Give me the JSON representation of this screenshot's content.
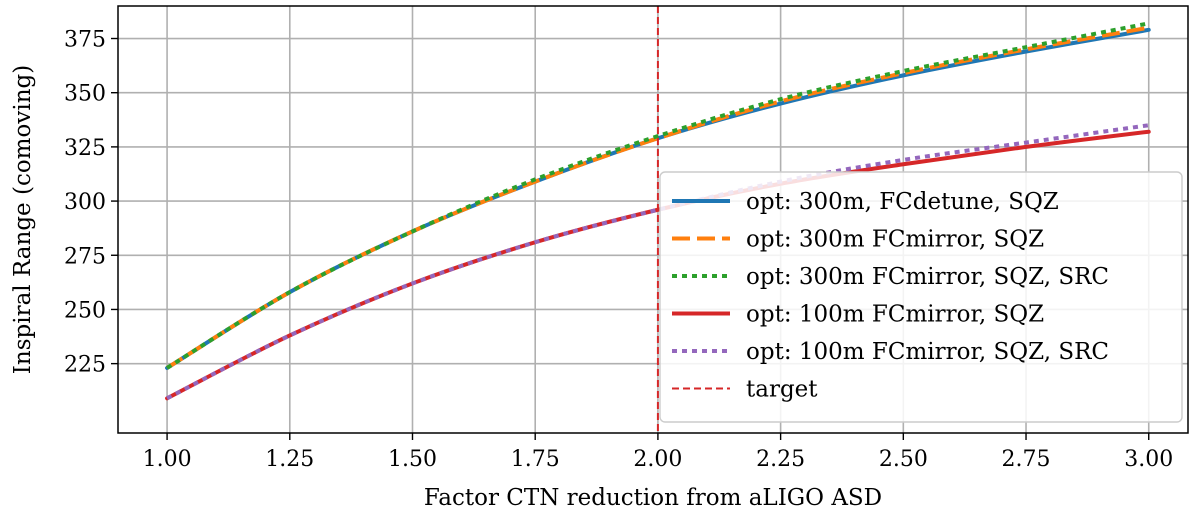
{
  "chart_data": {
    "type": "line",
    "xlabel": "Factor CTN reduction from aLIGO ASD",
    "ylabel": "Inspiral Range (comoving)",
    "xlim": [
      0.9,
      3.08
    ],
    "ylim": [
      193,
      390
    ],
    "xticks": [
      1.0,
      1.25,
      1.5,
      1.75,
      2.0,
      2.25,
      2.5,
      2.75,
      3.0
    ],
    "xtick_labels": [
      "1.00",
      "1.25",
      "1.50",
      "1.75",
      "2.00",
      "2.25",
      "2.50",
      "2.75",
      "3.00"
    ],
    "yticks": [
      225,
      250,
      275,
      300,
      325,
      350,
      375
    ],
    "ytick_labels": [
      "225",
      "250",
      "275",
      "300",
      "325",
      "350",
      "375"
    ],
    "grid": true,
    "legend_position": "right",
    "x": [
      1.0,
      1.25,
      1.5,
      1.75,
      2.0,
      2.25,
      2.5,
      2.75,
      3.0
    ],
    "series": [
      {
        "name": "opt: 300m, FCdetune, SQZ",
        "color": "#1f77b4",
        "style": "solid",
        "values": [
          223,
          258,
          286,
          309,
          329,
          345,
          358,
          369,
          379
        ]
      },
      {
        "name": "opt: 300m FCmirror, SQZ",
        "color": "#ff7f0e",
        "style": "dashed",
        "values": [
          223,
          258,
          286,
          309,
          329,
          346,
          359,
          370,
          380
        ]
      },
      {
        "name": "opt: 300m FCmirror, SQZ, SRC",
        "color": "#2ca02c",
        "style": "dotted",
        "values": [
          223,
          258,
          286,
          310,
          330,
          347,
          360,
          371,
          382
        ]
      },
      {
        "name": "opt: 100m FCmirror, SQZ",
        "color": "#d62728",
        "style": "solid",
        "values": [
          209,
          238,
          262,
          281,
          296,
          308,
          317,
          325,
          332
        ]
      },
      {
        "name": "opt: 100m FCmirror, SQZ, SRC",
        "color": "#9467bd",
        "style": "dotted",
        "values": [
          209,
          238,
          262,
          281,
          296,
          309,
          319,
          327,
          335
        ]
      }
    ],
    "target": {
      "name": "target",
      "x": 2.0,
      "color": "#d62728"
    }
  }
}
